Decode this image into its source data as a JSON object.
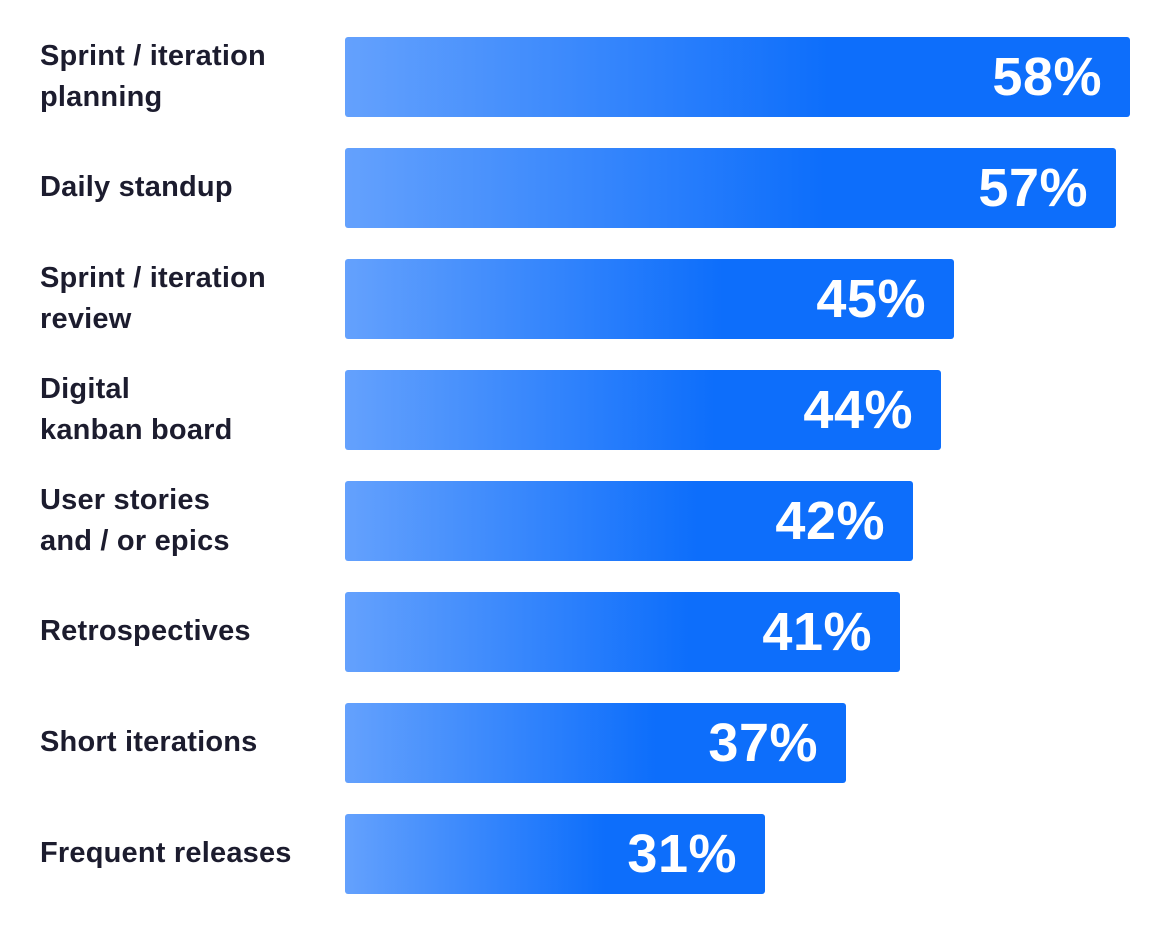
{
  "chart_data": {
    "type": "bar",
    "orientation": "horizontal",
    "title": "",
    "xlabel": "",
    "ylabel": "",
    "grid": false,
    "legend": false,
    "xlim": [
      0,
      60
    ],
    "categories": [
      "Sprint / iteration\nplanning",
      "Daily standup",
      "Sprint / iteration\nreview",
      "Digital\nkanban board",
      "User stories\nand / or epics",
      "Retrospectives",
      "Short iterations",
      "Frequent releases"
    ],
    "values": [
      58,
      57,
      45,
      44,
      42,
      41,
      37,
      31
    ],
    "value_labels": [
      "58%",
      "57%",
      "45%",
      "44%",
      "42%",
      "41%",
      "37%",
      "31%"
    ],
    "colors": {
      "bar_gradient_start": "#64a1fd",
      "bar_gradient_end": "#0d6efb",
      "label_text": "#1c1c2e",
      "value_text": "#ffffff",
      "background": "#ffffff"
    }
  }
}
